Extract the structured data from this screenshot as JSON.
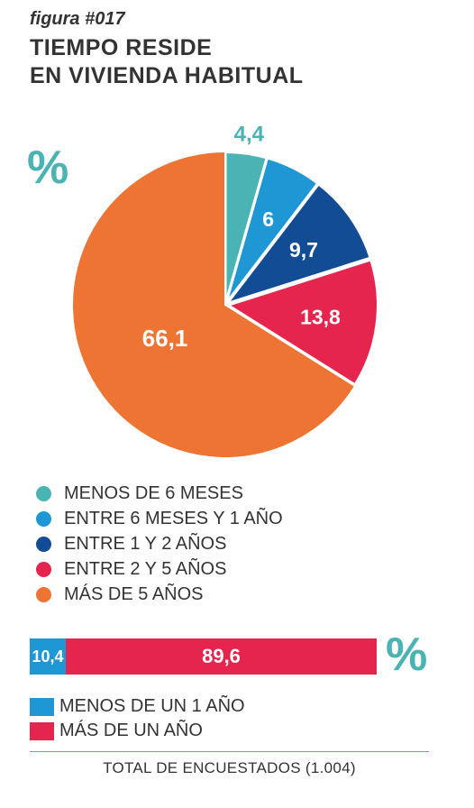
{
  "figure_label": "figura #017",
  "title_line1": "TIEMPO RESIDE",
  "title_line2": "EN VIVIENDA HABITUAL",
  "percent_symbol": "%",
  "chart_data": [
    {
      "type": "pie",
      "slices": [
        {
          "label": "MENOS DE 6 MESES",
          "display": "4,4",
          "value": 4.4,
          "color": "#4ab3b3"
        },
        {
          "label": "ENTRE 6 MESES Y 1 AÑO",
          "display": "6",
          "value": 6.0,
          "color": "#1f97d4"
        },
        {
          "label": "ENTRE 1 Y 2 AÑOS",
          "display": "9,7",
          "value": 9.7,
          "color": "#124c94"
        },
        {
          "label": "ENTRE 2 Y 5 AÑOS",
          "display": "13,8",
          "value": 13.8,
          "color": "#e6254e"
        },
        {
          "label": "MÁS DE 5 AÑOS",
          "display": "66,1",
          "value": 66.1,
          "color": "#ee7434"
        }
      ]
    },
    {
      "type": "bar",
      "orientation": "horizontal-stacked",
      "segments": [
        {
          "label": "MENOS DE UN 1 AÑO",
          "display": "10,4",
          "value": 10.4,
          "color": "#1f97d4"
        },
        {
          "label": "MÁS DE UN AÑO",
          "display": "89,6",
          "value": 89.6,
          "color": "#e6254e"
        }
      ]
    }
  ],
  "footer": "TOTAL DE ENCUESTADOS (1.004)"
}
